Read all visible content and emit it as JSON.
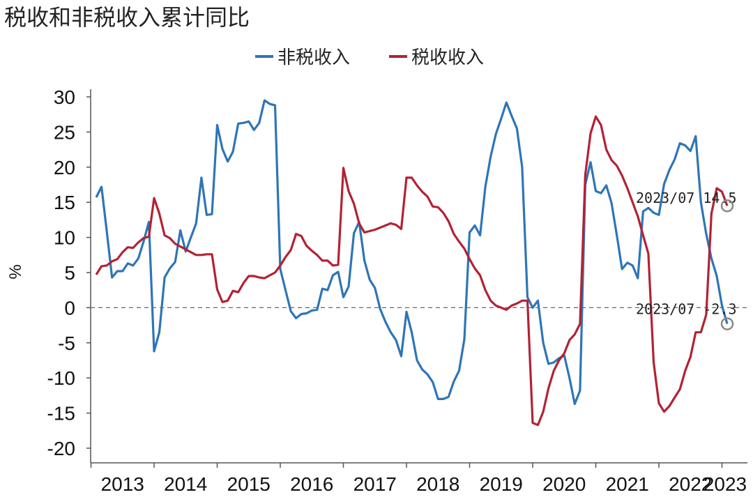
{
  "chart_data": {
    "type": "line",
    "title": "税收和非税收入累计同比",
    "ylabel": "%",
    "xlabel": "",
    "ylim": [
      -20,
      30
    ],
    "yticks": [
      30,
      25,
      20,
      15,
      10,
      5,
      0,
      -5,
      -10,
      -15,
      -20
    ],
    "year_labels": [
      "2013",
      "2014",
      "2015",
      "2016",
      "2017",
      "2018",
      "2019",
      "2020",
      "2021",
      "2022",
      "2023"
    ],
    "x_start": "2013-02",
    "x_end": "2023-07",
    "zero_line": "dashed",
    "grid": false,
    "legend_position": "top",
    "series": [
      {
        "name": "非税收入",
        "color": "#2E75B6",
        "values": [
          15.7,
          17.2,
          10.9,
          4.3,
          5.2,
          5.2,
          6.3,
          6.0,
          7.0,
          9.4,
          12.2,
          -6.2,
          -3.5,
          4.3,
          5.6,
          6.5,
          11.0,
          8.0,
          10.0,
          12.0,
          18.5,
          13.2,
          13.3,
          26.0,
          22.6,
          20.8,
          22.2,
          26.2,
          26.3,
          26.5,
          25.3,
          26.3,
          29.5,
          29.0,
          28.8,
          5.5,
          2.5,
          -0.5,
          -1.5,
          -0.9,
          -0.8,
          -0.4,
          -0.3,
          2.7,
          2.5,
          4.6,
          5.1,
          1.5,
          3.0,
          10.6,
          12.2,
          6.7,
          4.0,
          2.8,
          -0.2,
          -2.0,
          -3.5,
          -4.6,
          -6.9,
          -0.6,
          -3.5,
          -7.5,
          -8.8,
          -9.5,
          -10.6,
          -13.0,
          -13.0,
          -12.7,
          -10.5,
          -9.0,
          -4.5,
          10.7,
          11.7,
          10.3,
          17.2,
          21.5,
          24.7,
          26.9,
          29.2,
          27.3,
          25.5,
          20.0,
          1.5,
          0.0,
          1.0,
          -5.0,
          -8.0,
          -7.8,
          -7.2,
          -6.8,
          -10.0,
          -13.7,
          -11.8,
          17.5,
          20.7,
          16.6,
          16.3,
          17.4,
          14.9,
          10.3,
          5.5,
          6.4,
          6.0,
          4.2,
          13.7,
          14.2,
          13.5,
          13.2,
          17.6,
          19.6,
          21.1,
          23.4,
          23.1,
          22.3,
          24.4,
          15.0,
          10.5,
          7.0,
          4.5,
          0.3,
          -2.3
        ]
      },
      {
        "name": "税收收入",
        "color": "#B22234",
        "values": [
          4.7,
          5.9,
          6.0,
          6.6,
          6.9,
          7.9,
          8.6,
          8.5,
          9.3,
          9.9,
          10.1,
          15.6,
          13.4,
          10.3,
          9.9,
          9.1,
          8.7,
          8.3,
          7.9,
          7.5,
          7.5,
          7.6,
          7.6,
          2.6,
          0.8,
          1.0,
          2.4,
          2.2,
          3.5,
          4.5,
          4.5,
          4.3,
          4.2,
          4.6,
          5.0,
          6.0,
          7.2,
          8.2,
          10.5,
          10.2,
          8.8,
          8.1,
          7.5,
          6.7,
          6.7,
          6.0,
          6.1,
          19.9,
          16.6,
          14.8,
          12.0,
          10.7,
          10.9,
          11.1,
          11.4,
          11.7,
          12.0,
          11.8,
          11.2,
          18.5,
          18.5,
          17.4,
          16.5,
          15.8,
          14.4,
          14.3,
          13.5,
          12.3,
          10.5,
          9.4,
          8.4,
          6.9,
          5.6,
          4.6,
          2.5,
          1.0,
          0.3,
          0.0,
          -0.3,
          0.3,
          0.6,
          1.0,
          1.0,
          -16.4,
          -16.7,
          -14.8,
          -11.5,
          -9.0,
          -7.5,
          -6.5,
          -4.6,
          -3.8,
          -2.3,
          18.9,
          24.8,
          27.2,
          26.0,
          22.5,
          21.0,
          20.2,
          18.8,
          17.0,
          15.0,
          13.0,
          10.3,
          7.7,
          -7.8,
          -13.6,
          -14.8,
          -14.0,
          -12.8,
          -11.6,
          -9.0,
          -7.0,
          -3.5,
          -3.5,
          -1.0,
          13.4,
          17.0,
          16.5,
          14.5
        ]
      }
    ],
    "annotations": [
      {
        "series": 0,
        "label": "2023/07 -2.3"
      },
      {
        "series": 1,
        "label": "2023/07 14.5"
      }
    ]
  }
}
